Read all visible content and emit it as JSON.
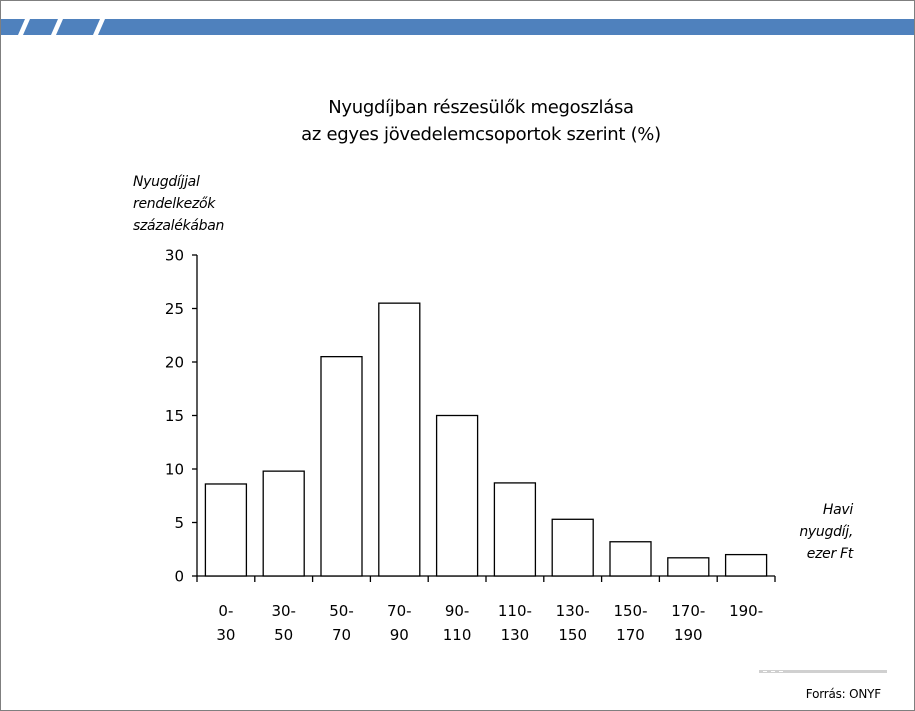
{
  "chart_data": {
    "type": "bar",
    "title": [
      "Nyugdíjban részesülők megoszlása",
      "az egyes jövedelemcsoportok szerint (%)"
    ],
    "ylabel": [
      "Nyugdíjjal",
      "rendelkezők",
      "százalékában"
    ],
    "xlabel": [
      "Havi",
      "nyugdíj,",
      "ezer Ft"
    ],
    "categories": [
      [
        "0-",
        "30"
      ],
      [
        "30-",
        "50"
      ],
      [
        "50-",
        "70"
      ],
      [
        "70-",
        "90"
      ],
      [
        "90-",
        "110"
      ],
      [
        "110-",
        "130"
      ],
      [
        "130-",
        "150"
      ],
      [
        "150-",
        "170"
      ],
      [
        "170-",
        "190"
      ],
      [
        "190-",
        ""
      ]
    ],
    "values": [
      8.6,
      9.8,
      20.5,
      25.5,
      15.0,
      8.7,
      5.3,
      3.2,
      1.7,
      2.0
    ],
    "ylim": [
      0,
      30
    ],
    "yticks": [
      0,
      5,
      10,
      15,
      20,
      25,
      30
    ],
    "grid": false,
    "colors": {
      "bar_fill": "#ffffff",
      "bar_stroke": "#000000"
    }
  },
  "source": "Forrás: ONYF",
  "colors": {
    "header_bar": "#4f81bd",
    "frame": "#7f7f7f"
  }
}
